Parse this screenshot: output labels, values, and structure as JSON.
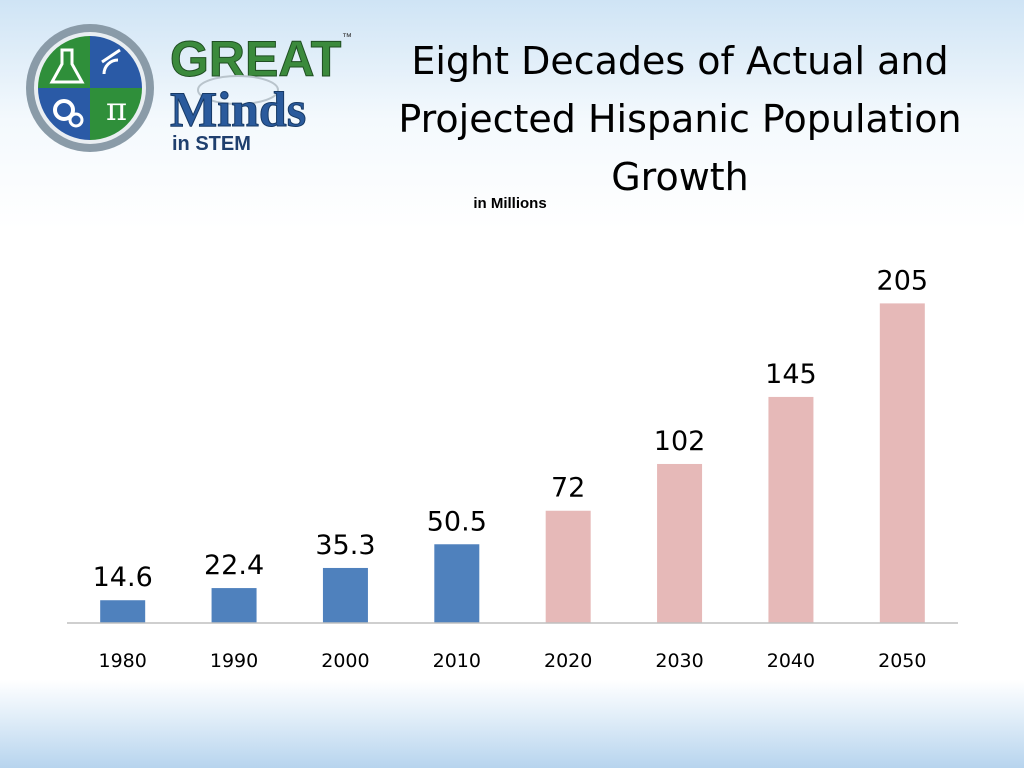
{
  "header": {
    "logo_text_great": "GREAT",
    "logo_text_minds": "Minds",
    "logo_text_stem": "in STEM",
    "logo_tm": "™"
  },
  "title": "Eight Decades of Actual and Projected Hispanic Population Growth",
  "unit_label": "in Millions",
  "chart_data": {
    "type": "bar",
    "title": "Eight Decades of Actual and Projected Hispanic Population Growth",
    "subtitle": "in Millions",
    "categories": [
      "1980",
      "1990",
      "2000",
      "2010",
      "2020",
      "2030",
      "2040",
      "2050"
    ],
    "values": [
      14.6,
      22.4,
      35.3,
      50.5,
      72,
      102,
      145,
      205
    ],
    "value_labels": [
      "14.6",
      "22.4",
      "35.3",
      "50.5",
      "72",
      "102",
      "145",
      "205"
    ],
    "bar_colors": [
      "#4f81bd",
      "#4f81bd",
      "#4f81bd",
      "#4f81bd",
      "#e6b9b8",
      "#e6b9b8",
      "#e6b9b8",
      "#e6b9b8"
    ],
    "ylim": [
      0,
      220
    ],
    "grid": false,
    "legend": "none",
    "xlabel": "",
    "ylabel": ""
  },
  "colors": {
    "actual": "#4f81bd",
    "projected": "#e6b9b8",
    "axis": "#bfbfbf",
    "logo_green": "#3b8a3c",
    "logo_blue": "#2a5a9c"
  }
}
